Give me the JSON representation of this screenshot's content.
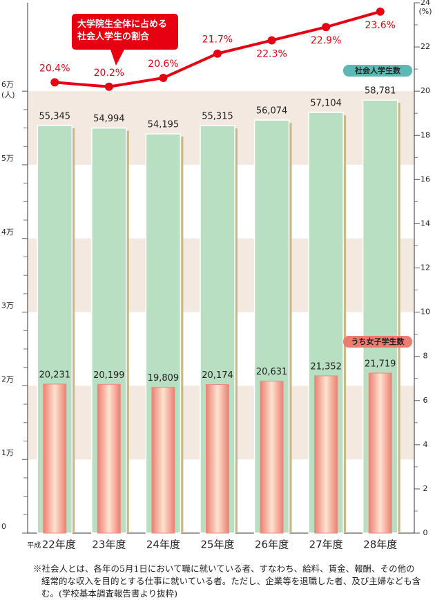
{
  "chart_data": {
    "type": "bar",
    "categories": [
      "22年度",
      "23年度",
      "24年度",
      "25年度",
      "26年度",
      "27年度",
      "28年度"
    ],
    "era": "平成",
    "y_unit": "(人)",
    "y2_unit": "(%)",
    "ylim": [
      0,
      72000
    ],
    "yticks": [
      0,
      {
        "value": 10000,
        "label": "1万"
      },
      {
        "value": 20000,
        "label": "2万"
      },
      {
        "value": 30000,
        "label": "3万"
      },
      {
        "value": 40000,
        "label": "4万"
      },
      {
        "value": 50000,
        "label": "5万"
      },
      {
        "value": 60000,
        "label": "6万"
      }
    ],
    "y2lim": [
      0,
      24
    ],
    "y2ticks": [
      0,
      2,
      4,
      6,
      8,
      10,
      12,
      14,
      16,
      18,
      20,
      22,
      24
    ],
    "series": [
      {
        "name": "社会人学生数",
        "type": "bar",
        "color": "#b9dfc2",
        "values": [
          55345,
          54994,
          54195,
          55315,
          56074,
          57104,
          58781
        ],
        "value_labels": [
          "55,345",
          "54,994",
          "54,195",
          "55,315",
          "56,074",
          "57,104",
          "58,781"
        ]
      },
      {
        "name": "うち女子学生数",
        "type": "bar",
        "color": "#ef8a7e",
        "values": [
          20231,
          20199,
          19809,
          20174,
          20631,
          21352,
          21719
        ],
        "value_labels": [
          "20,231",
          "20,199",
          "19,809",
          "20,174",
          "20,631",
          "21,352",
          "21,719"
        ]
      },
      {
        "name": "大学院生全体に占める社会人学生の割合",
        "type": "line",
        "axis": "y2",
        "color": "#e60012",
        "values": [
          20.4,
          20.2,
          20.6,
          21.7,
          22.3,
          22.9,
          23.6
        ],
        "value_labels": [
          "20.4%",
          "20.2%",
          "20.6%",
          "21.7%",
          "22.3%",
          "22.9%",
          "23.6%"
        ]
      }
    ],
    "note": "※社会人とは、各年の5月1日において職に就いている者、すなわち、給料、賃金、報酬、その他の経常的な収入を目的とする仕事に就いている者。ただし、企業等を退職した者、及び主婦なども含む。(学校基本調査報告書より抜粋)"
  }
}
